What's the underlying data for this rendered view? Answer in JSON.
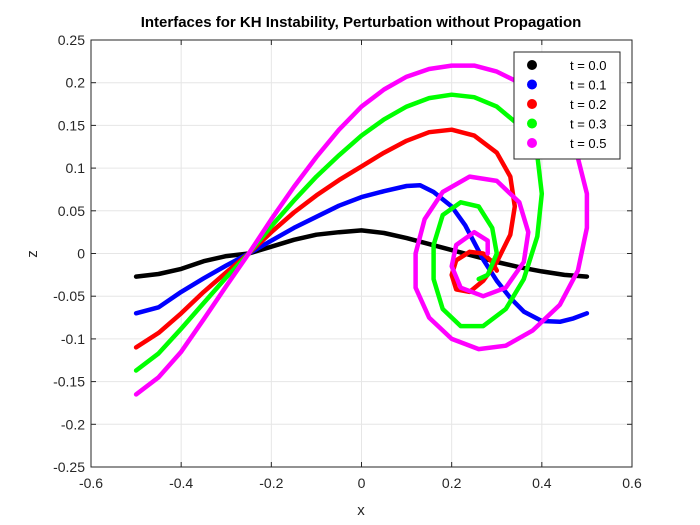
{
  "chart_data": {
    "type": "line",
    "title": "Interfaces for KH Instability, Perturbation without Propagation",
    "xlabel": "x",
    "ylabel": "z",
    "xlim": [
      -0.6,
      0.6
    ],
    "ylim": [
      -0.25,
      0.25
    ],
    "xticks": [
      "-0.6",
      "-0.4",
      "-0.2",
      "0",
      "0.2",
      "0.4",
      "0.6"
    ],
    "yticks": [
      "0.25",
      "0.2",
      "0.15",
      "0.1",
      "0.05",
      "0",
      "-0.05",
      "-0.1",
      "-0.15",
      "-0.2",
      "-0.25"
    ],
    "grid": true,
    "legend_position": "top-right",
    "series": [
      {
        "name": "t = 0.0",
        "color": "#000000",
        "points": [
          [
            -0.5,
            -0.027
          ],
          [
            -0.45,
            -0.024
          ],
          [
            -0.4,
            -0.018
          ],
          [
            -0.35,
            -0.009
          ],
          [
            -0.3,
            -0.003
          ],
          [
            -0.25,
            0.0
          ],
          [
            -0.2,
            0.008
          ],
          [
            -0.15,
            0.016
          ],
          [
            -0.1,
            0.022
          ],
          [
            -0.05,
            0.025
          ],
          [
            0.0,
            0.027
          ],
          [
            0.05,
            0.024
          ],
          [
            0.1,
            0.018
          ],
          [
            0.15,
            0.011
          ],
          [
            0.2,
            0.004
          ],
          [
            0.25,
            -0.003
          ],
          [
            0.3,
            -0.01
          ],
          [
            0.35,
            -0.016
          ],
          [
            0.4,
            -0.021
          ],
          [
            0.45,
            -0.025
          ],
          [
            0.5,
            -0.027
          ]
        ]
      },
      {
        "name": "t = 0.1",
        "color": "#0000ff",
        "points": [
          [
            -0.5,
            -0.07
          ],
          [
            -0.45,
            -0.063
          ],
          [
            -0.4,
            -0.045
          ],
          [
            -0.35,
            -0.029
          ],
          [
            -0.3,
            -0.014
          ],
          [
            -0.25,
            0.0
          ],
          [
            -0.2,
            0.015
          ],
          [
            -0.15,
            0.03
          ],
          [
            -0.1,
            0.043
          ],
          [
            -0.05,
            0.056
          ],
          [
            0.0,
            0.066
          ],
          [
            0.05,
            0.073
          ],
          [
            0.1,
            0.079
          ],
          [
            0.13,
            0.08
          ],
          [
            0.16,
            0.072
          ],
          [
            0.2,
            0.055
          ],
          [
            0.23,
            0.033
          ],
          [
            0.25,
            0.013
          ],
          [
            0.27,
            -0.007
          ],
          [
            0.3,
            -0.032
          ],
          [
            0.33,
            -0.052
          ],
          [
            0.36,
            -0.068
          ],
          [
            0.4,
            -0.079
          ],
          [
            0.44,
            -0.08
          ],
          [
            0.47,
            -0.076
          ],
          [
            0.5,
            -0.07
          ]
        ]
      },
      {
        "name": "t = 0.2",
        "color": "#ff0000",
        "points": [
          [
            -0.5,
            -0.11
          ],
          [
            -0.45,
            -0.093
          ],
          [
            -0.4,
            -0.07
          ],
          [
            -0.35,
            -0.045
          ],
          [
            -0.3,
            -0.022
          ],
          [
            -0.25,
            0.0
          ],
          [
            -0.2,
            0.025
          ],
          [
            -0.15,
            0.048
          ],
          [
            -0.1,
            0.068
          ],
          [
            -0.05,
            0.086
          ],
          [
            0.0,
            0.102
          ],
          [
            0.05,
            0.118
          ],
          [
            0.1,
            0.132
          ],
          [
            0.15,
            0.142
          ],
          [
            0.2,
            0.145
          ],
          [
            0.25,
            0.138
          ],
          [
            0.3,
            0.118
          ],
          [
            0.33,
            0.09
          ],
          [
            0.34,
            0.055
          ],
          [
            0.33,
            0.022
          ],
          [
            0.3,
            -0.01
          ],
          [
            0.27,
            -0.032
          ],
          [
            0.24,
            -0.045
          ],
          [
            0.21,
            -0.042
          ],
          [
            0.2,
            -0.025
          ],
          [
            0.21,
            -0.008
          ],
          [
            0.24,
            0.002
          ],
          [
            0.27,
            0.0
          ],
          [
            0.29,
            -0.01
          ],
          [
            0.3,
            -0.02
          ]
        ]
      },
      {
        "name": "t = 0.3",
        "color": "#00ff00",
        "points": [
          [
            -0.5,
            -0.137
          ],
          [
            -0.45,
            -0.117
          ],
          [
            -0.4,
            -0.088
          ],
          [
            -0.35,
            -0.058
          ],
          [
            -0.3,
            -0.028
          ],
          [
            -0.25,
            0.0
          ],
          [
            -0.2,
            0.032
          ],
          [
            -0.15,
            0.062
          ],
          [
            -0.1,
            0.09
          ],
          [
            -0.05,
            0.115
          ],
          [
            0.0,
            0.138
          ],
          [
            0.05,
            0.157
          ],
          [
            0.1,
            0.172
          ],
          [
            0.15,
            0.182
          ],
          [
            0.2,
            0.186
          ],
          [
            0.25,
            0.183
          ],
          [
            0.3,
            0.172
          ],
          [
            0.35,
            0.15
          ],
          [
            0.39,
            0.115
          ],
          [
            0.4,
            0.07
          ],
          [
            0.39,
            0.02
          ],
          [
            0.36,
            -0.03
          ],
          [
            0.32,
            -0.065
          ],
          [
            0.27,
            -0.085
          ],
          [
            0.22,
            -0.085
          ],
          [
            0.18,
            -0.065
          ],
          [
            0.16,
            -0.03
          ],
          [
            0.16,
            0.01
          ],
          [
            0.18,
            0.045
          ],
          [
            0.22,
            0.06
          ],
          [
            0.26,
            0.055
          ],
          [
            0.29,
            0.03
          ],
          [
            0.3,
            0.0
          ],
          [
            0.28,
            -0.025
          ],
          [
            0.26,
            -0.03
          ]
        ]
      },
      {
        "name": "t = 0.5",
        "color": "#ff00ff",
        "points": [
          [
            -0.5,
            -0.165
          ],
          [
            -0.45,
            -0.145
          ],
          [
            -0.4,
            -0.115
          ],
          [
            -0.35,
            -0.077
          ],
          [
            -0.3,
            -0.038
          ],
          [
            -0.25,
            0.0
          ],
          [
            -0.2,
            0.04
          ],
          [
            -0.15,
            0.078
          ],
          [
            -0.1,
            0.113
          ],
          [
            -0.05,
            0.145
          ],
          [
            0.0,
            0.172
          ],
          [
            0.05,
            0.192
          ],
          [
            0.1,
            0.207
          ],
          [
            0.15,
            0.216
          ],
          [
            0.2,
            0.22
          ],
          [
            0.25,
            0.22
          ],
          [
            0.3,
            0.213
          ],
          [
            0.35,
            0.2
          ],
          [
            0.4,
            0.178
          ],
          [
            0.45,
            0.148
          ],
          [
            0.48,
            0.112
          ],
          [
            0.5,
            0.07
          ],
          [
            0.5,
            0.03
          ],
          [
            0.48,
            -0.02
          ],
          [
            0.44,
            -0.06
          ],
          [
            0.38,
            -0.09
          ],
          [
            0.32,
            -0.108
          ],
          [
            0.26,
            -0.112
          ],
          [
            0.2,
            -0.1
          ],
          [
            0.15,
            -0.075
          ],
          [
            0.12,
            -0.04
          ],
          [
            0.12,
            0.0
          ],
          [
            0.14,
            0.04
          ],
          [
            0.18,
            0.072
          ],
          [
            0.24,
            0.09
          ],
          [
            0.3,
            0.085
          ],
          [
            0.35,
            0.06
          ],
          [
            0.37,
            0.025
          ],
          [
            0.36,
            -0.01
          ],
          [
            0.32,
            -0.04
          ],
          [
            0.27,
            -0.05
          ],
          [
            0.22,
            -0.04
          ],
          [
            0.2,
            -0.015
          ],
          [
            0.21,
            0.01
          ],
          [
            0.25,
            0.025
          ],
          [
            0.28,
            0.015
          ],
          [
            0.28,
            0.0
          ]
        ]
      }
    ]
  }
}
